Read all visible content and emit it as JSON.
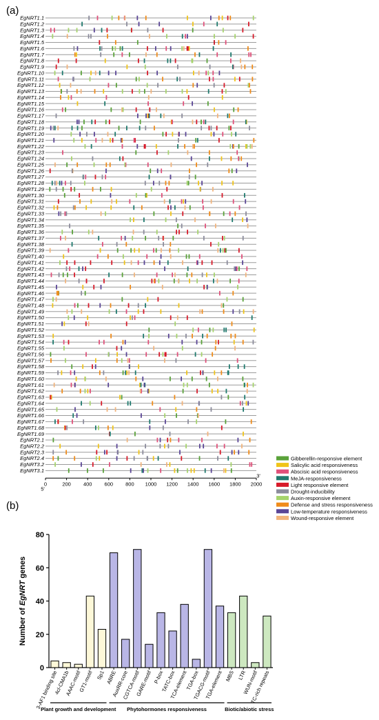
{
  "panel_a_label": "(a)",
  "panel_b_label": "(b)",
  "chart_data": [
    {
      "type": "scatter",
      "title": "",
      "genes": [
        "EgNRT1.1",
        "EgNRT1.2",
        "EgNRT1.3",
        "EgNRT1.4",
        "EgNRT1.5",
        "EgNRT1.6",
        "EgNRT1.7",
        "EgNRT1.8",
        "EgNRT1.9",
        "EgNRT1.10",
        "EgNRT1.11",
        "EgNRT1.12",
        "EgNRT1.13",
        "EgNRT1.14",
        "EgNRT1.15",
        "EgNRT1.16",
        "EgNRT1.17",
        "EgNRT1.18",
        "EgNRT1.19",
        "EgNRT1.20",
        "EgNRT1.21",
        "EgNRT1.22",
        "EgNRT1.23",
        "EgNRT1.24",
        "EgNRT1.25",
        "EgNRT1.26",
        "EgNRT1.27",
        "EgNRT1.28",
        "EgNRT1.29",
        "EgNRT1.30",
        "EgNRT1.31",
        "EgNRT1.32",
        "EgNRT1.33",
        "EgNRT1.34",
        "EgNRT1.35",
        "EgNRT1.36",
        "EgNRT1.37",
        "EgNRT1.38",
        "EgNRT1.39",
        "EgNRT1.40",
        "EgNRT1.41",
        "EgNRT1.42",
        "EgNRT1.43",
        "EgNRT1.44",
        "EgNRT1.45",
        "EgNRT1.46",
        "EgNRT1.47",
        "EgNRT1.48",
        "EgNRT1.49",
        "EgNRT1.50",
        "EgNRT1.51",
        "EgNRT1.52",
        "EgNRT1.53",
        "EgNRT1.54",
        "EgNRT1.55",
        "EgNRT1.56",
        "EgNRT1.57",
        "EgNRT1.58",
        "EgNRT1.59",
        "EgNRT1.60",
        "EgNRT1.61",
        "EgNRT1.62",
        "EgNRT1.63",
        "EgNRT1.64",
        "EgNRT1.65",
        "EgNRT1.66",
        "EgNRT1.67",
        "EgNRT1.68",
        "EgNRT1.69",
        "EgNRT2.1",
        "EgNRT2.2",
        "EgNRT2.3",
        "EgNRT2.4",
        "EgNRT3.2",
        "EgNRT3.1"
      ],
      "xlim": [
        0,
        2000
      ],
      "x_ticks": [
        "0",
        "200",
        "400",
        "600",
        "800",
        "1000",
        "1200",
        "1400",
        "1600",
        "1800",
        "2000"
      ],
      "x_start_label": "5'",
      "x_end_label": "3'",
      "legend_position": "right",
      "legend": [
        {
          "name": "Gibberellin-responsive element",
          "color": "#5aa23a"
        },
        {
          "name": "Salicylic acid responsiveness",
          "color": "#f0c419"
        },
        {
          "name": "Abscisic acid responsiveness",
          "color": "#e0507a"
        },
        {
          "name": "MeJA-responsiveness",
          "color": "#1f7a6e"
        },
        {
          "name": "Light responsive element",
          "color": "#d81b2a"
        },
        {
          "name": "Drought-inducibility",
          "color": "#8c8c9c"
        },
        {
          "name": "Auxin-responsive element",
          "color": "#a6d46c"
        },
        {
          "name": "Defense and stress responsiveness",
          "color": "#f08c1a"
        },
        {
          "name": "Low-temperature responsiveness",
          "color": "#5a4596"
        },
        {
          "name": "Wound-responsive element",
          "color": "#f2b47c"
        }
      ],
      "elements_note_seed": 1
    },
    {
      "type": "bar",
      "title": "",
      "ylabel_prefix": "Number of ",
      "ylabel_italic": "EgNRT",
      "ylabel_suffix": " genes",
      "ylim": [
        0,
        80
      ],
      "y_ticks": [
        "0",
        "20",
        "40",
        "60",
        "80"
      ],
      "categories": [
        "3-AF1 binding site",
        "4cl-CMA1b",
        "AAAC-motif",
        "GT1-motif",
        "Sp1",
        "ABRE",
        "AuxRR-core",
        "CGTCA-motif",
        "GARE-motif",
        "P-box",
        "TATC-box",
        "TCA-element",
        "TGA-box",
        "TGACG-motif",
        "TGA-element",
        "MBS",
        "LTR",
        "WUN-motif",
        "TC-rich repeats"
      ],
      "values": [
        4,
        3,
        2,
        43,
        23,
        69,
        17,
        71,
        14,
        33,
        22,
        38,
        5,
        71,
        37,
        33,
        43,
        3,
        31
      ],
      "groups": [
        {
          "name": "Plant growth and development",
          "start": 0,
          "end": 4,
          "color": "#fdf8d8"
        },
        {
          "name": "Phytohormones responsiveness",
          "start": 5,
          "end": 14,
          "color": "#b9b6e6"
        },
        {
          "name": "Biotic/abiotic stress",
          "start": 15,
          "end": 18,
          "color": "#cde8c0"
        }
      ]
    }
  ]
}
